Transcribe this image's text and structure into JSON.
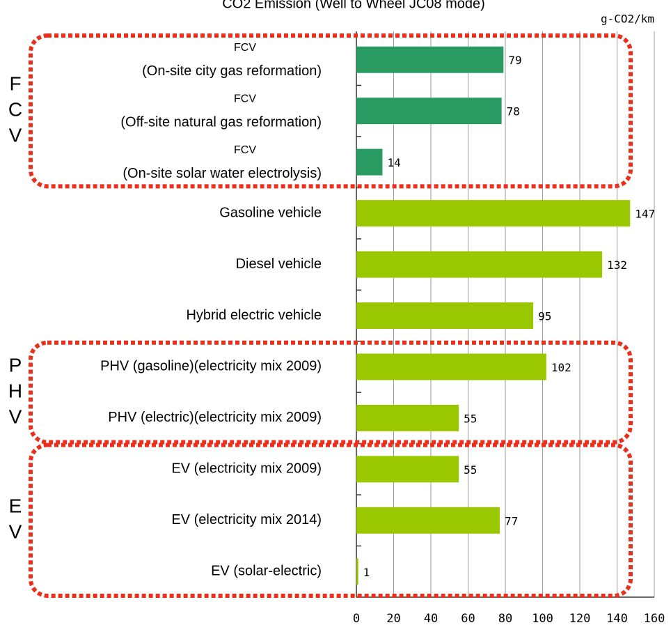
{
  "chart_data": {
    "type": "hbar",
    "title": "CO2 Emission (Well to Wheel JC08 mode)",
    "unit_label": "g-CO2/km",
    "categories": [
      [
        "FCV",
        "(On-site city gas reformation)"
      ],
      [
        "FCV",
        "(Off-site natural gas reformation)"
      ],
      [
        "FCV",
        "(On-site solar water electrolysis)"
      ],
      [
        "Gasoline vehicle"
      ],
      [
        "Diesel vehicle"
      ],
      [
        "Hybrid electric vehicle"
      ],
      [
        "PHV (gasoline)(electricity mix 2009)"
      ],
      [
        "PHV (electric)(electricity mix 2009)"
      ],
      [
        "EV (electricity mix 2009)"
      ],
      [
        "EV (electricity mix 2014)"
      ],
      [
        "EV (solar-electric)"
      ]
    ],
    "values": [
      79,
      78,
      14,
      147,
      132,
      95,
      102,
      55,
      55,
      77,
      1
    ],
    "colors": [
      "#2a9a63",
      "#2a9a63",
      "#2a9a63",
      "#99c800",
      "#99c800",
      "#99c800",
      "#99c800",
      "#99c800",
      "#99c800",
      "#99c800",
      "#99c800"
    ],
    "xlim": [
      0,
      160
    ],
    "xticks": [
      0,
      20,
      40,
      60,
      80,
      100,
      120,
      140,
      160
    ],
    "grid": true,
    "groups": [
      {
        "letters": [
          "F",
          "C",
          "V"
        ],
        "first": 0,
        "last": 2
      },
      {
        "letters": [
          "P",
          "H",
          "V"
        ],
        "first": 6,
        "last": 7
      },
      {
        "letters": [
          "E",
          "V"
        ],
        "first": 8,
        "last": 10
      }
    ],
    "group_color": "#e8301c"
  }
}
